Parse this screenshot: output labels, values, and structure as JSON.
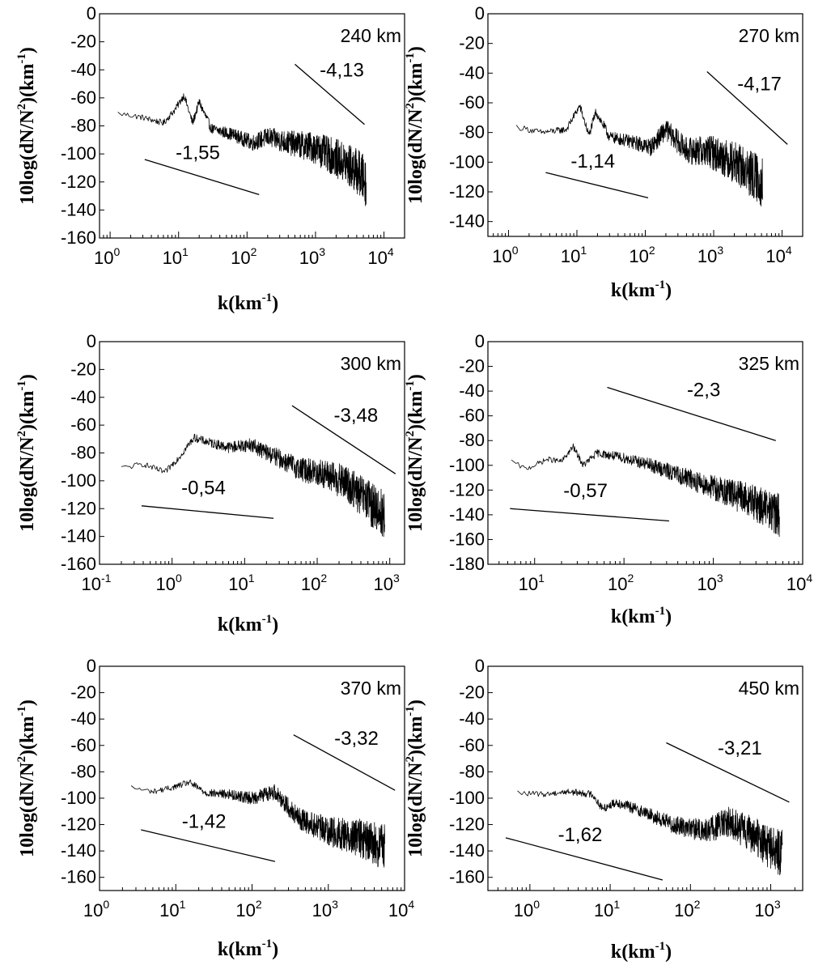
{
  "figure": {
    "panels": [
      {
        "altitude": "240 km",
        "x_ticks": [
          {
            "base": "10",
            "exp": "0"
          },
          {
            "base": "10",
            "exp": "1"
          },
          {
            "base": "10",
            "exp": "2"
          },
          {
            "base": "10",
            "exp": "3"
          },
          {
            "base": "10",
            "exp": "4"
          }
        ],
        "y_ticks": [
          "0",
          "-20",
          "-40",
          "-60",
          "-80",
          "-100",
          "-120",
          "-140",
          "-160"
        ],
        "slopes": [
          {
            "label": "-4,13",
            "x1": 500,
            "y1": -36,
            "x2": 5200,
            "y2": -79
          },
          {
            "label": "-1,55",
            "x1": 3.2,
            "y1": -104,
            "x2": 150,
            "y2": -129
          }
        ]
      },
      {
        "altitude": "270 km",
        "x_ticks": [
          {
            "base": "10",
            "exp": "0"
          },
          {
            "base": "10",
            "exp": "1"
          },
          {
            "base": "10",
            "exp": "2"
          },
          {
            "base": "10",
            "exp": "3"
          },
          {
            "base": "10",
            "exp": "4"
          }
        ],
        "y_ticks": [
          "0",
          "-20",
          "-40",
          "-60",
          "-80",
          "-100",
          "-120",
          "-140"
        ],
        "slopes": [
          {
            "label": "-4,17",
            "x1": 800,
            "y1": -39,
            "x2": 12000,
            "y2": -88
          },
          {
            "label": "-1,14",
            "x1": 3.5,
            "y1": -107,
            "x2": 110,
            "y2": -124
          }
        ]
      },
      {
        "altitude": "300 km",
        "x_ticks": [
          {
            "base": "10",
            "exp": "-1"
          },
          {
            "base": "10",
            "exp": "0"
          },
          {
            "base": "10",
            "exp": "1"
          },
          {
            "base": "10",
            "exp": "2"
          },
          {
            "base": "10",
            "exp": "3"
          }
        ],
        "y_ticks": [
          "0",
          "-20",
          "-40",
          "-60",
          "-80",
          "-100",
          "-120",
          "-140",
          "-160"
        ],
        "slopes": [
          {
            "label": "-3,48",
            "x1": 45,
            "y1": -46,
            "x2": 1200,
            "y2": -95
          },
          {
            "label": "-0,54",
            "x1": 0.38,
            "y1": -118,
            "x2": 25,
            "y2": -127
          }
        ]
      },
      {
        "altitude": "325 km",
        "x_ticks": [
          {
            "base": "10",
            "exp": "1"
          },
          {
            "base": "10",
            "exp": "2"
          },
          {
            "base": "10",
            "exp": "3"
          },
          {
            "base": "10",
            "exp": "4"
          }
        ],
        "y_ticks": [
          "0",
          "-20",
          "-40",
          "-60",
          "-80",
          "-100",
          "-120",
          "-140",
          "-160",
          "-180"
        ],
        "slopes": [
          {
            "label": "-2,3",
            "x1": 65,
            "y1": -37,
            "x2": 5000,
            "y2": -80
          },
          {
            "label": "-0,57",
            "x1": 5.3,
            "y1": -135,
            "x2": 320,
            "y2": -145
          }
        ]
      },
      {
        "altitude": "370 km",
        "x_ticks": [
          {
            "base": "10",
            "exp": "0"
          },
          {
            "base": "10",
            "exp": "1"
          },
          {
            "base": "10",
            "exp": "2"
          },
          {
            "base": "10",
            "exp": "3"
          },
          {
            "base": "10",
            "exp": "4"
          }
        ],
        "y_ticks": [
          "0",
          "-20",
          "-40",
          "-60",
          "-80",
          "-100",
          "-120",
          "-140",
          "-160"
        ],
        "slopes": [
          {
            "label": "-3,32",
            "x1": 350,
            "y1": -52,
            "x2": 7500,
            "y2": -94
          },
          {
            "label": "-1,42",
            "x1": 3.5,
            "y1": -124,
            "x2": 200,
            "y2": -148
          }
        ]
      },
      {
        "altitude": "450 km",
        "x_ticks": [
          {
            "base": "10",
            "exp": "0"
          },
          {
            "base": "10",
            "exp": "1"
          },
          {
            "base": "10",
            "exp": "2"
          },
          {
            "base": "10",
            "exp": "3"
          }
        ],
        "y_ticks": [
          "0",
          "-20",
          "-40",
          "-60",
          "-80",
          "-100",
          "-120",
          "-140",
          "-160"
        ],
        "slopes": [
          {
            "label": "-3,21",
            "x1": 50,
            "y1": -58,
            "x2": 1700,
            "y2": -103
          },
          {
            "label": "-1,62",
            "x1": 0.5,
            "y1": -130,
            "x2": 45,
            "y2": -162
          }
        ]
      }
    ]
  },
  "chart_data": [
    {
      "type": "line",
      "title": "",
      "xlabel": "k(km-1)",
      "ylabel": "10log(dN/N2)(km-1)",
      "x_scale": "log",
      "xlim": [
        0.7,
        20000
      ],
      "ylim": [
        -160,
        0
      ],
      "grid": false,
      "series": [
        {
          "name": "",
          "x_range": [
            1.3,
            5500
          ],
          "y_range": [
            -150,
            -57
          ],
          "points": [
            [
              1.3,
              -71
            ],
            [
              3,
              -74
            ],
            [
              6,
              -78
            ],
            [
              9,
              -68
            ],
            [
              12,
              -58
            ],
            [
              16,
              -78
            ],
            [
              20,
              -63
            ],
            [
              30,
              -82
            ],
            [
              60,
              -86
            ],
            [
              120,
              -92
            ],
            [
              200,
              -88
            ],
            [
              400,
              -92
            ],
            [
              900,
              -95
            ],
            [
              2000,
              -103
            ],
            [
              4000,
              -112
            ],
            [
              5500,
              -120
            ]
          ]
        }
      ]
    },
    {
      "type": "line",
      "title": "",
      "xlabel": "k(km-1)",
      "ylabel": "10log(dN/N2)(km-1)",
      "x_scale": "log",
      "xlim": [
        0.5,
        20000
      ],
      "ylim": [
        -150,
        0
      ],
      "grid": false,
      "series": [
        {
          "name": "",
          "x_range": [
            1.3,
            5200
          ],
          "y_range": [
            -143,
            -62
          ],
          "points": [
            [
              1.3,
              -76
            ],
            [
              3,
              -80
            ],
            [
              7,
              -78
            ],
            [
              11,
              -62
            ],
            [
              15,
              -82
            ],
            [
              19,
              -66
            ],
            [
              30,
              -83
            ],
            [
              60,
              -86
            ],
            [
              120,
              -90
            ],
            [
              200,
              -78
            ],
            [
              400,
              -92
            ],
            [
              900,
              -93
            ],
            [
              2000,
              -100
            ],
            [
              4000,
              -110
            ],
            [
              5200,
              -114
            ]
          ]
        }
      ]
    },
    {
      "type": "line",
      "title": "",
      "xlabel": "k(km-1)",
      "ylabel": "10log(dN/N2)(km-1)",
      "x_scale": "log",
      "xlim": [
        0.1,
        1600
      ],
      "ylim": [
        -160,
        0
      ],
      "grid": false,
      "series": [
        {
          "name": "",
          "x_range": [
            0.2,
            850
          ],
          "y_range": [
            -150,
            -68
          ],
          "points": [
            [
              0.2,
              -91
            ],
            [
              0.4,
              -88
            ],
            [
              0.8,
              -94
            ],
            [
              1.3,
              -82
            ],
            [
              2,
              -69
            ],
            [
              3,
              -72
            ],
            [
              6,
              -76
            ],
            [
              12,
              -74
            ],
            [
              30,
              -84
            ],
            [
              60,
              -92
            ],
            [
              120,
              -95
            ],
            [
              250,
              -102
            ],
            [
              500,
              -115
            ],
            [
              850,
              -125
            ]
          ]
        }
      ]
    },
    {
      "type": "line",
      "title": "",
      "xlabel": "k(km-1)",
      "ylabel": "10log(dN/N2)(km-1)",
      "x_scale": "log",
      "xlim": [
        3,
        10000
      ],
      "ylim": [
        -180,
        0
      ],
      "grid": false,
      "series": [
        {
          "name": "",
          "x_range": [
            5.5,
            5500
          ],
          "y_range": [
            -155,
            -83
          ],
          "points": [
            [
              5.5,
              -97
            ],
            [
              8,
              -103
            ],
            [
              14,
              -95
            ],
            [
              20,
              -97
            ],
            [
              27,
              -85
            ],
            [
              35,
              -100
            ],
            [
              50,
              -90
            ],
            [
              100,
              -94
            ],
            [
              200,
              -100
            ],
            [
              500,
              -110
            ],
            [
              1000,
              -118
            ],
            [
              2500,
              -128
            ],
            [
              5500,
              -140
            ]
          ]
        }
      ]
    },
    {
      "type": "line",
      "title": "",
      "xlabel": "k(km-1)",
      "ylabel": "10log(dN/N2)(km-1)",
      "x_scale": "log",
      "xlim": [
        1,
        10000
      ],
      "ylim": [
        -170,
        0
      ],
      "grid": false,
      "series": [
        {
          "name": "",
          "x_range": [
            2.6,
            5500
          ],
          "y_range": [
            -160,
            -90
          ],
          "points": [
            [
              2.6,
              -92
            ],
            [
              5,
              -95
            ],
            [
              9,
              -92
            ],
            [
              15,
              -88
            ],
            [
              25,
              -96
            ],
            [
              50,
              -97
            ],
            [
              100,
              -100
            ],
            [
              200,
              -95
            ],
            [
              400,
              -115
            ],
            [
              1000,
              -125
            ],
            [
              2500,
              -130
            ],
            [
              5500,
              -138
            ]
          ]
        }
      ]
    },
    {
      "type": "line",
      "title": "",
      "xlabel": "k(km-1)",
      "ylabel": "10log(dN/N2)(km-1)",
      "x_scale": "log",
      "xlim": [
        0.3,
        2500
      ],
      "ylim": [
        -170,
        0
      ],
      "grid": false,
      "series": [
        {
          "name": "",
          "x_range": [
            0.7,
            1400
          ],
          "y_range": [
            -163,
            -92
          ],
          "points": [
            [
              0.7,
              -96
            ],
            [
              1.5,
              -97
            ],
            [
              3,
              -95
            ],
            [
              6,
              -97
            ],
            [
              8,
              -108
            ],
            [
              12,
              -103
            ],
            [
              25,
              -110
            ],
            [
              60,
              -120
            ],
            [
              150,
              -125
            ],
            [
              300,
              -118
            ],
            [
              600,
              -128
            ],
            [
              1000,
              -138
            ],
            [
              1400,
              -142
            ]
          ]
        }
      ]
    }
  ]
}
